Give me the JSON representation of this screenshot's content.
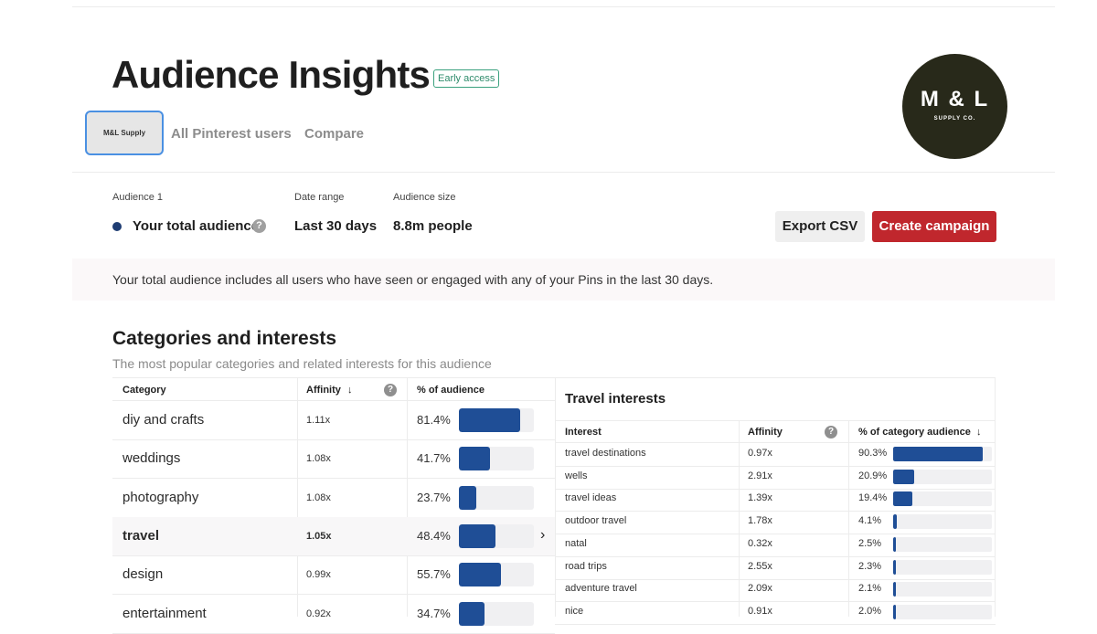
{
  "header": {
    "title": "Audience Insights",
    "badge": "Early access",
    "tabs": [
      {
        "label": "M&L Supply",
        "selected": true
      },
      {
        "label": "All Pinterest users",
        "selected": false
      },
      {
        "label": "Compare",
        "selected": false
      }
    ],
    "logo": {
      "line1": "M & L",
      "line2": "SUPPLY CO."
    }
  },
  "audience": {
    "label": "Audience 1",
    "value": "Your total audience",
    "help_icon": "question-icon",
    "dot_color": "#1f3d73"
  },
  "date_range": {
    "label": "Date range",
    "value": "Last 30 days"
  },
  "audience_size": {
    "label": "Audience size",
    "value": "8.8m people"
  },
  "actions": {
    "export": "Export CSV",
    "create": "Create campaign",
    "create_color": "#c0272d"
  },
  "banner": "Your total audience includes all users who have seen or engaged with any of your Pins in the last 30 days.",
  "section": {
    "title": "Categories and interests",
    "subtitle": "The most popular categories and related interests for this audience"
  },
  "categories": {
    "headers": {
      "category": "Category",
      "affinity": "Affinity",
      "percent": "% of audience",
      "sort_icon": "arrow-down-icon"
    },
    "rows": [
      {
        "name": "diy and crafts",
        "affinity": "1.11x",
        "percent": "81.4%",
        "fraction": 0.814,
        "selected": false
      },
      {
        "name": "weddings",
        "affinity": "1.08x",
        "percent": "41.7%",
        "fraction": 0.417,
        "selected": false
      },
      {
        "name": "photography",
        "affinity": "1.08x",
        "percent": "23.7%",
        "fraction": 0.237,
        "selected": false
      },
      {
        "name": "travel",
        "affinity": "1.05x",
        "percent": "48.4%",
        "fraction": 0.484,
        "selected": true
      },
      {
        "name": "design",
        "affinity": "0.99x",
        "percent": "55.7%",
        "fraction": 0.557,
        "selected": false
      },
      {
        "name": "entertainment",
        "affinity": "0.92x",
        "percent": "34.7%",
        "fraction": 0.347,
        "selected": false
      }
    ]
  },
  "travel": {
    "title": "Travel interests",
    "headers": {
      "interest": "Interest",
      "affinity": "Affinity",
      "percent": "% of category audience"
    },
    "rows": [
      {
        "name": "travel destinations",
        "affinity": "0.97x",
        "percent": "90.3%",
        "fraction": 0.903
      },
      {
        "name": "wells",
        "affinity": "2.91x",
        "percent": "20.9%",
        "fraction": 0.209
      },
      {
        "name": "travel ideas",
        "affinity": "1.39x",
        "percent": "19.4%",
        "fraction": 0.194
      },
      {
        "name": "outdoor travel",
        "affinity": "1.78x",
        "percent": "4.1%",
        "fraction": 0.041
      },
      {
        "name": "natal",
        "affinity": "0.32x",
        "percent": "2.5%",
        "fraction": 0.025
      },
      {
        "name": "road trips",
        "affinity": "2.55x",
        "percent": "2.3%",
        "fraction": 0.023
      },
      {
        "name": "adventure travel",
        "affinity": "2.09x",
        "percent": "2.1%",
        "fraction": 0.021
      },
      {
        "name": "nice",
        "affinity": "0.91x",
        "percent": "2.0%",
        "fraction": 0.02
      }
    ]
  }
}
